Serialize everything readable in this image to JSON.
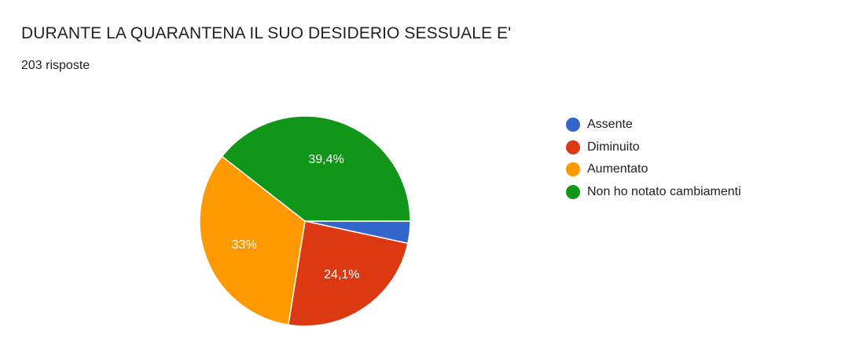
{
  "header": {
    "title": "DURANTE LA QUARANTENA IL SUO DESIDERIO SESSUALE E'",
    "responses": "203 risposte"
  },
  "chart_data": {
    "type": "pie",
    "categories": [
      "Assente",
      "Diminuito",
      "Aumentato",
      "Non ho notato cambiamenti"
    ],
    "values": [
      3.4,
      24.1,
      33.0,
      39.4
    ],
    "slice_labels": [
      "",
      "24,1%",
      "33%",
      "39,4%"
    ],
    "colors": [
      "#3366cc",
      "#dc3912",
      "#ff9900",
      "#109618"
    ],
    "legend_position": "right"
  }
}
